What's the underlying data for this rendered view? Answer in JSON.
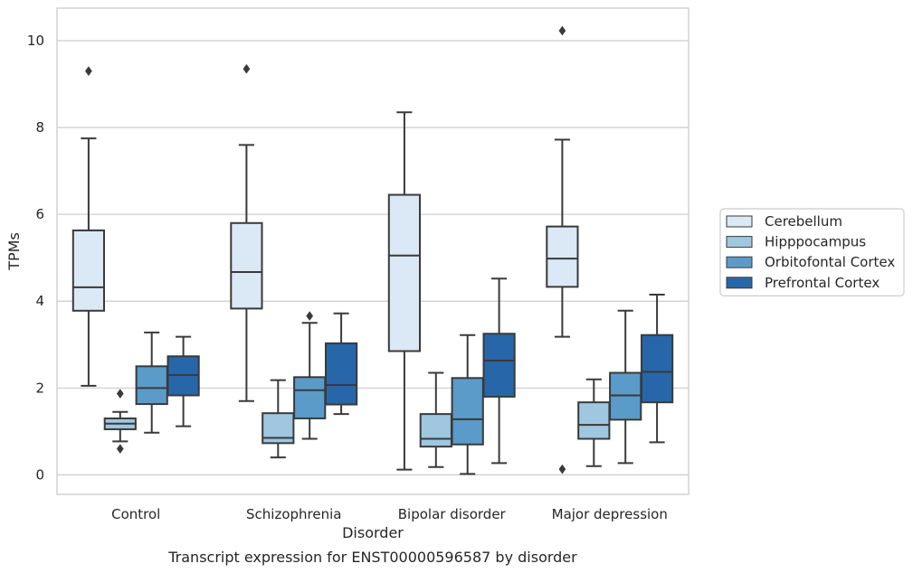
{
  "chart_data": {
    "type": "box",
    "xlabel": "Disorder",
    "ylabel": "TPMs",
    "caption": "Transcript expression for ENST00000596587 by disorder",
    "ylim": [
      -0.45,
      10.75
    ],
    "yticks": [
      0,
      2,
      4,
      6,
      8,
      10
    ],
    "grid": true,
    "legend_position": "right",
    "categories": [
      "Control",
      "Schizophrenia",
      "Bipolar disorder",
      "Major depression"
    ],
    "series": [
      {
        "name": "Cerebellum",
        "color": "#dbe8f5",
        "boxes": [
          {
            "whislo": 2.05,
            "q1": 3.78,
            "med": 4.32,
            "q3": 5.63,
            "whishi": 7.75,
            "fliers": [
              9.3
            ]
          },
          {
            "whislo": 1.7,
            "q1": 3.83,
            "med": 4.67,
            "q3": 5.8,
            "whishi": 7.6,
            "fliers": [
              9.35
            ]
          },
          {
            "whislo": 0.12,
            "q1": 2.85,
            "med": 5.05,
            "q3": 6.45,
            "whishi": 8.35,
            "fliers": []
          },
          {
            "whislo": 3.18,
            "q1": 4.33,
            "med": 4.98,
            "q3": 5.72,
            "whishi": 7.72,
            "fliers": [
              10.23,
              0.13
            ]
          }
        ]
      },
      {
        "name": "Hipppocampus",
        "color": "#9fc7e0",
        "boxes": [
          {
            "whislo": 0.77,
            "q1": 1.05,
            "med": 1.18,
            "q3": 1.3,
            "whishi": 1.45,
            "fliers": [
              1.87,
              0.6
            ]
          },
          {
            "whislo": 0.4,
            "q1": 0.73,
            "med": 0.85,
            "q3": 1.42,
            "whishi": 2.18,
            "fliers": []
          },
          {
            "whislo": 0.18,
            "q1": 0.65,
            "med": 0.83,
            "q3": 1.4,
            "whishi": 2.35,
            "fliers": []
          },
          {
            "whislo": 0.2,
            "q1": 0.83,
            "med": 1.15,
            "q3": 1.67,
            "whishi": 2.2,
            "fliers": []
          }
        ]
      },
      {
        "name": "Orbitofontal Cortex",
        "color": "#5a9bc9",
        "boxes": [
          {
            "whislo": 0.97,
            "q1": 1.63,
            "med": 2.0,
            "q3": 2.5,
            "whishi": 3.28,
            "fliers": []
          },
          {
            "whislo": 0.83,
            "q1": 1.3,
            "med": 1.95,
            "q3": 2.25,
            "whishi": 3.5,
            "fliers": [
              3.66
            ]
          },
          {
            "whislo": 0.02,
            "q1": 0.7,
            "med": 1.28,
            "q3": 2.23,
            "whishi": 3.22,
            "fliers": []
          },
          {
            "whislo": 0.27,
            "q1": 1.27,
            "med": 1.83,
            "q3": 2.35,
            "whishi": 3.78,
            "fliers": []
          }
        ]
      },
      {
        "name": "Prefrontal Cortex",
        "color": "#2767a9",
        "boxes": [
          {
            "whislo": 1.12,
            "q1": 1.83,
            "med": 2.3,
            "q3": 2.73,
            "whishi": 3.18,
            "fliers": []
          },
          {
            "whislo": 1.4,
            "q1": 1.62,
            "med": 2.07,
            "q3": 3.03,
            "whishi": 3.72,
            "fliers": []
          },
          {
            "whislo": 0.27,
            "q1": 1.8,
            "med": 2.63,
            "q3": 3.25,
            "whishi": 4.52,
            "fliers": []
          },
          {
            "whislo": 0.75,
            "q1": 1.67,
            "med": 2.37,
            "q3": 3.22,
            "whishi": 4.15,
            "fliers": []
          }
        ]
      }
    ]
  }
}
